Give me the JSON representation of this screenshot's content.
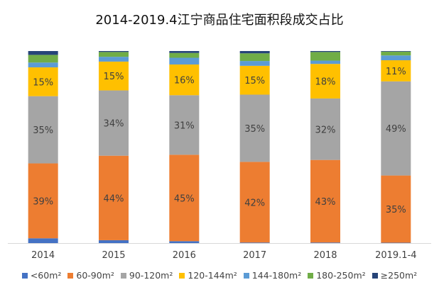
{
  "chart_data": {
    "type": "bar",
    "stacked": true,
    "normalized": true,
    "title": "2014-2019.4江宁商品住宅面积段成交占比",
    "xlabel": "",
    "ylabel": "",
    "ylim": [
      0,
      100
    ],
    "grid": false,
    "legend_position": "bottom",
    "categories": [
      "2014",
      "2015",
      "2016",
      "2017",
      "2018",
      "2019.1-4"
    ],
    "series": [
      {
        "name": "<60m²",
        "color": "#4472C4",
        "values": [
          2.5,
          1.5,
          1,
          0.3,
          0.3,
          0.2
        ],
        "labels": [
          "",
          "",
          "",
          "",
          "",
          ""
        ]
      },
      {
        "name": "60-90m²",
        "color": "#ED7D31",
        "values": [
          39,
          44,
          45,
          42,
          43,
          35
        ],
        "labels": [
          "39%",
          "44%",
          "45%",
          "42%",
          "43%",
          "35%"
        ]
      },
      {
        "name": "90-120m²",
        "color": "#A5A5A5",
        "values": [
          35,
          34,
          31,
          35,
          32,
          49
        ],
        "labels": [
          "35%",
          "34%",
          "31%",
          "35%",
          "32%",
          "49%"
        ]
      },
      {
        "name": "120-144m²",
        "color": "#FFC000",
        "values": [
          15,
          15,
          16,
          15,
          18,
          11
        ],
        "labels": [
          "15%",
          "15%",
          "16%",
          "15%",
          "18%",
          "11%"
        ]
      },
      {
        "name": "144-180m²",
        "color": "#5B9BD5",
        "values": [
          2.5,
          2.5,
          3.5,
          2.5,
          1.7,
          2.5
        ],
        "labels": [
          "",
          "",
          "",
          "",
          "",
          ""
        ]
      },
      {
        "name": "180-250m²",
        "color": "#70AD47",
        "values": [
          4,
          2.5,
          2.5,
          4,
          4.5,
          2
        ],
        "labels": [
          "",
          "",
          "",
          "",
          "",
          ""
        ]
      },
      {
        "name": "≥250m²",
        "color": "#264478",
        "values": [
          2,
          0.5,
          1,
          1.2,
          0.5,
          0.3
        ],
        "labels": [
          "",
          "",
          "",
          "",
          "",
          ""
        ]
      }
    ]
  }
}
